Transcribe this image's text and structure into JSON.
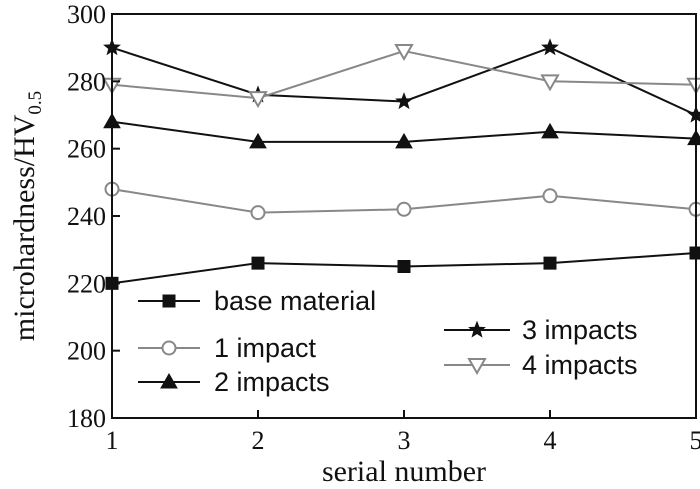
{
  "chart_data": {
    "type": "line",
    "xlabel": "serial number",
    "ylabel": "microhardness/HV",
    "ylabel_subscript": "0.5",
    "xlim": [
      1,
      5
    ],
    "ylim": [
      180,
      300
    ],
    "xticks": [
      "1",
      "2",
      "3",
      "4",
      "5"
    ],
    "yticks": [
      "180",
      "200",
      "220",
      "240",
      "260",
      "280",
      "300"
    ],
    "x": [
      1,
      2,
      3,
      4,
      5
    ],
    "grid": false,
    "series": [
      {
        "name": "base material",
        "values": [
          220,
          226,
          225,
          226,
          229
        ],
        "color": "#111111",
        "marker": "square-filled"
      },
      {
        "name": "1 impact",
        "values": [
          248,
          241,
          242,
          246,
          242
        ],
        "color": "#888888",
        "marker": "circle-open"
      },
      {
        "name": "2 impacts",
        "values": [
          268,
          262,
          262,
          265,
          263
        ],
        "color": "#111111",
        "marker": "triangle-filled"
      },
      {
        "name": "3 impacts",
        "values": [
          290,
          276,
          274,
          290,
          270
        ],
        "color": "#111111",
        "marker": "star-filled"
      },
      {
        "name": "4 impacts",
        "values": [
          279,
          275,
          289,
          280,
          279
        ],
        "color": "#888888",
        "marker": "triangle-down-open"
      }
    ]
  }
}
